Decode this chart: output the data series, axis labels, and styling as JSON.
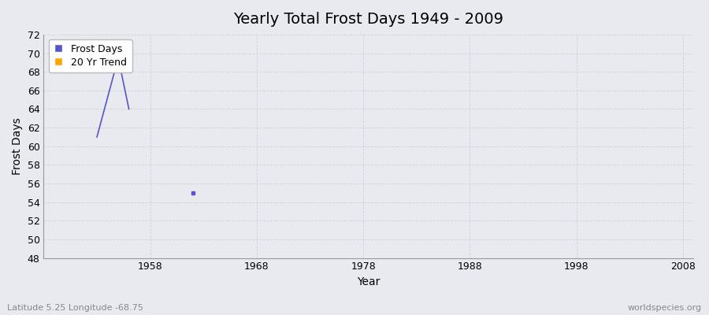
{
  "title": "Yearly Total Frost Days 1949 - 2009",
  "xlabel": "Year",
  "ylabel": "Frost Days",
  "subtitle": "Latitude 5.25 Longitude -68.75",
  "watermark": "worldspecies.org",
  "xlim": [
    1948,
    2009
  ],
  "ylim": [
    48,
    72
  ],
  "yticks": [
    48,
    50,
    52,
    54,
    56,
    58,
    60,
    62,
    64,
    66,
    68,
    70,
    72
  ],
  "xticks": [
    1958,
    1968,
    1978,
    1988,
    1998,
    2008
  ],
  "frost_line_years": [
    1953,
    1955,
    1956
  ],
  "frost_line_values": [
    61,
    69.5,
    64
  ],
  "frost_dot_years": [
    1962
  ],
  "frost_dot_values": [
    55
  ],
  "trend_years": [],
  "trend_values": [],
  "line_color": "#5555cc",
  "trend_color": "#FFA500",
  "bg_color": "#e8eaf0",
  "grid_color": "#c8cce0",
  "legend_labels": [
    "Frost Days",
    "20 Yr Trend"
  ],
  "title_fontsize": 14,
  "axis_label_fontsize": 10,
  "tick_fontsize": 9
}
